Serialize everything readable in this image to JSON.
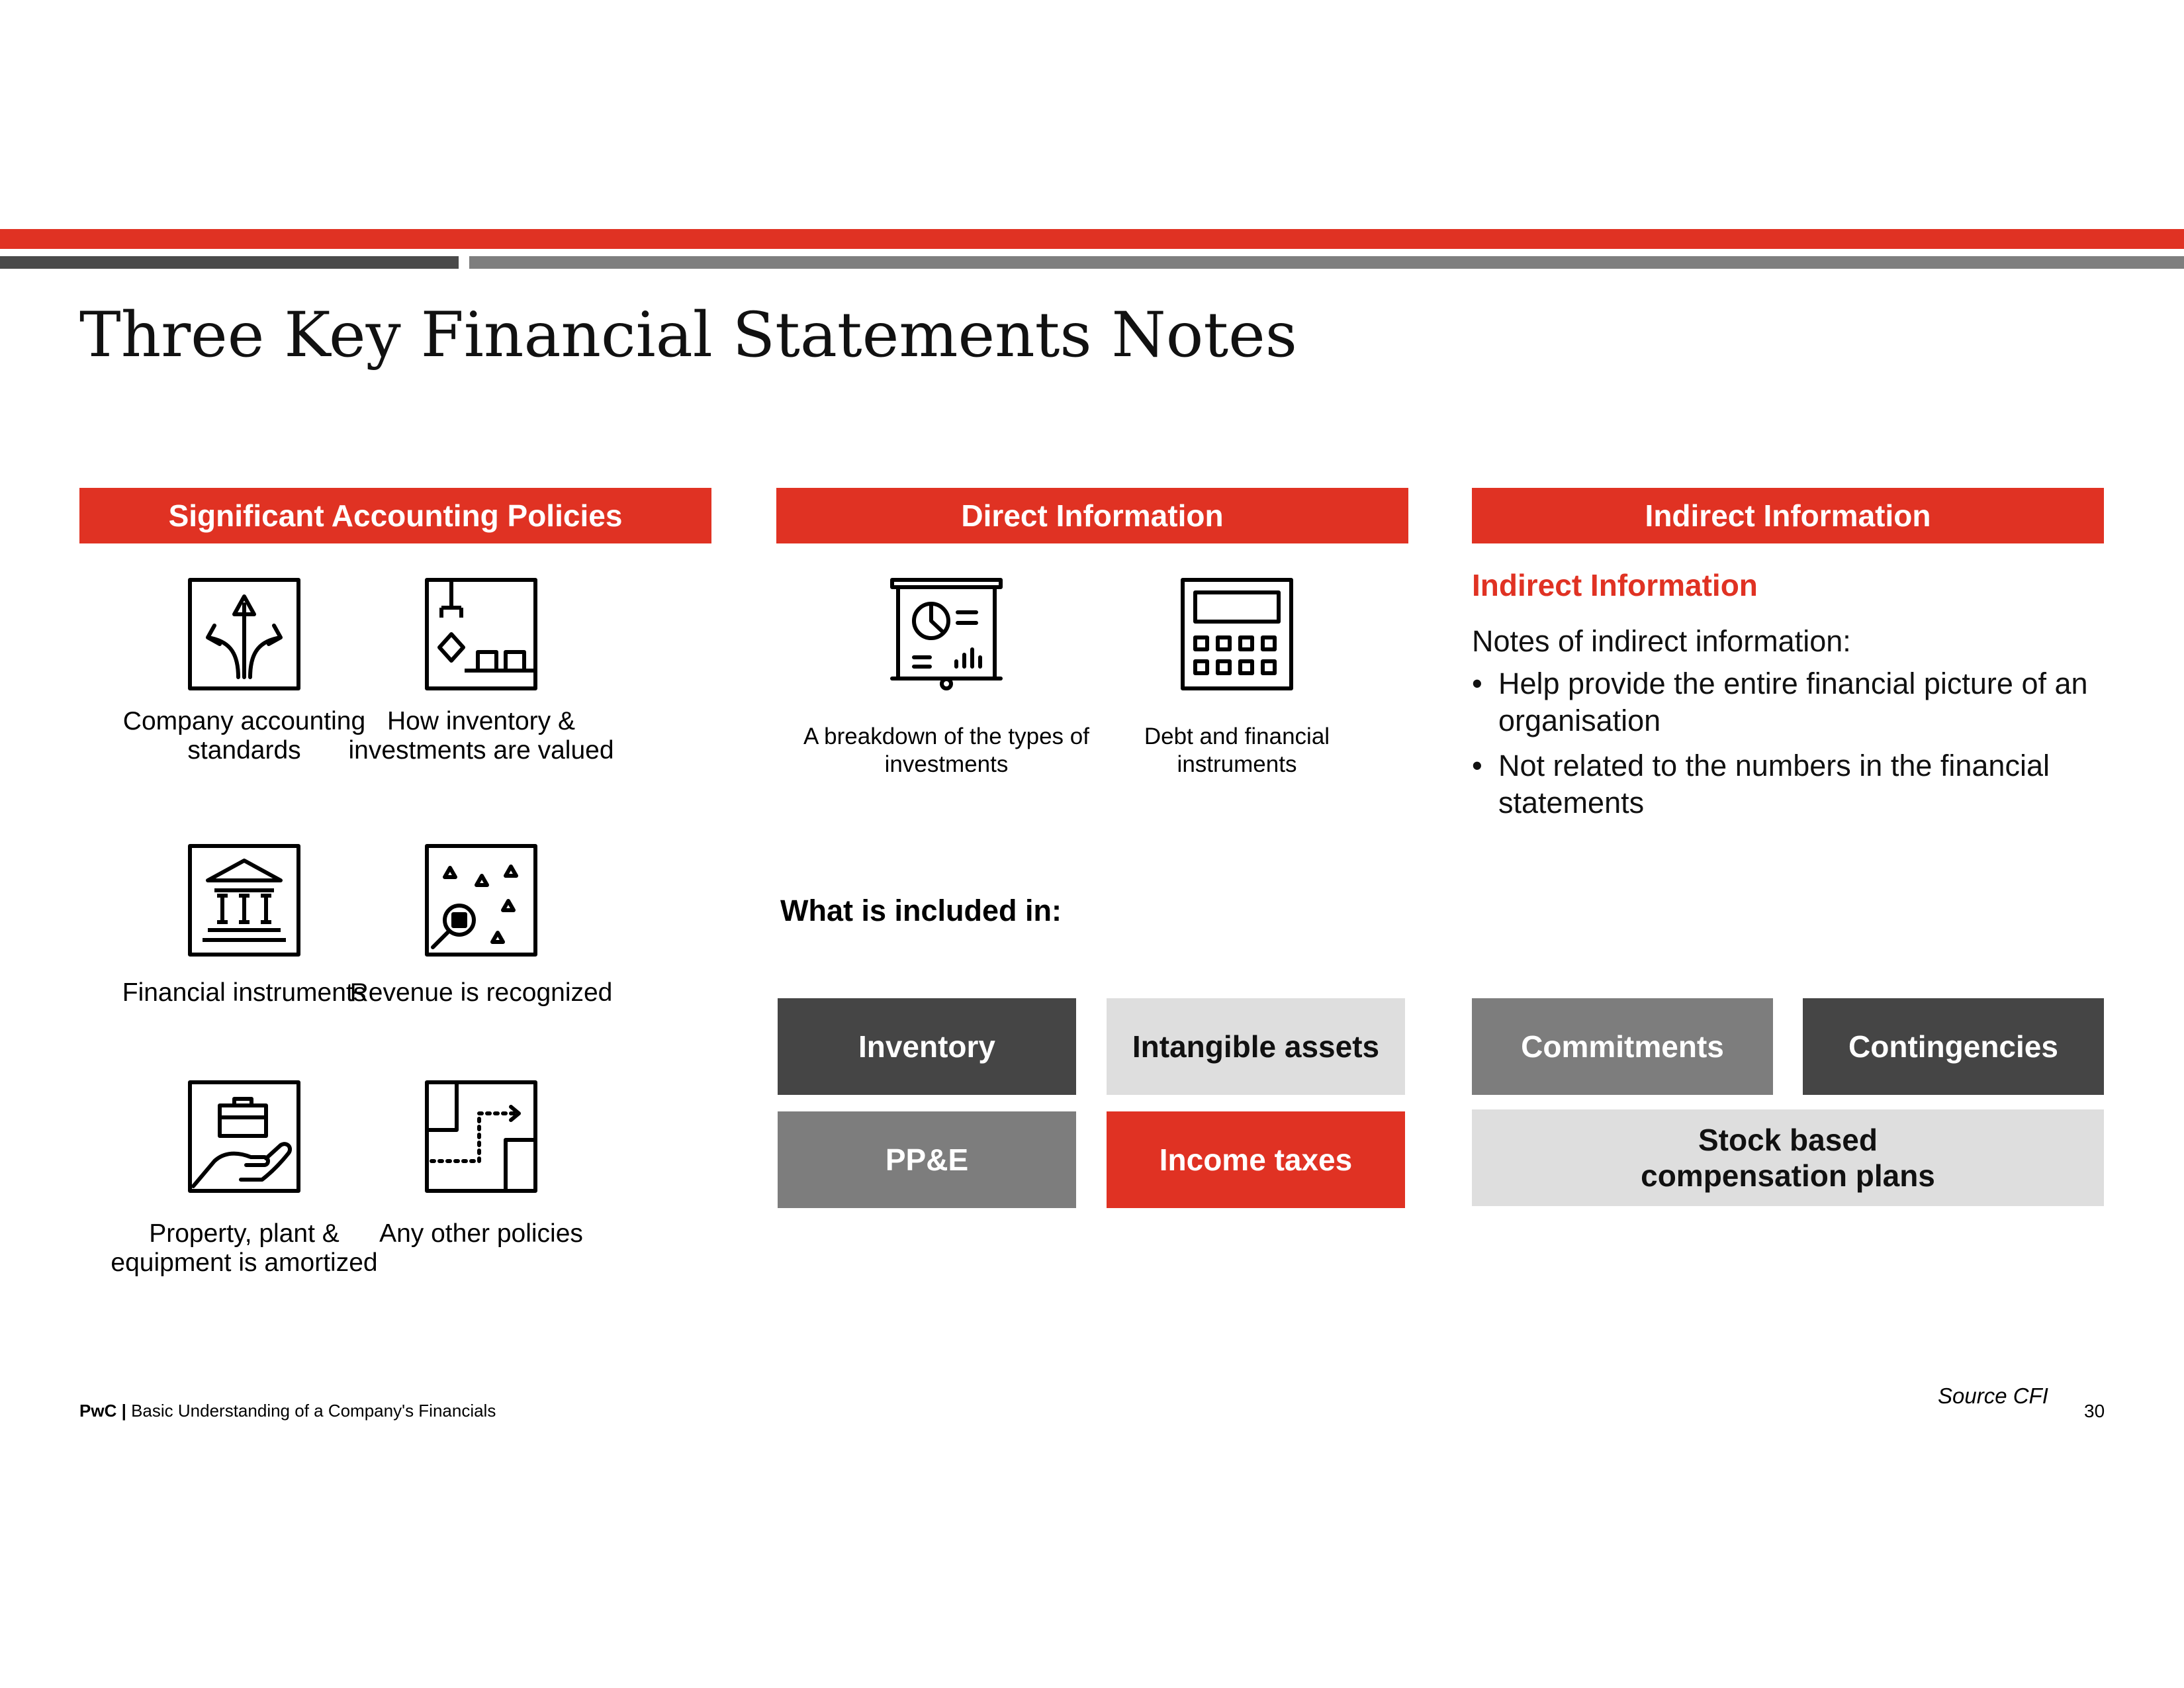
{
  "title": "Three Key Financial Statements Notes",
  "columns": {
    "policies": {
      "header": "Significant Accounting Policies",
      "items": [
        {
          "label": "Company accounting standards",
          "icon": "arrows-split-icon"
        },
        {
          "label": "How inventory & investments are valued",
          "icon": "floor-plan-icon"
        },
        {
          "label": "Financial instruments",
          "icon": "bank-building-icon"
        },
        {
          "label": "Revenue is recognized",
          "icon": "magnifier-shapes-icon"
        },
        {
          "label": "Property, plant & equipment is amortized",
          "icon": "hand-briefcase-icon"
        },
        {
          "label": "Any other policies",
          "icon": "path-map-icon"
        }
      ]
    },
    "direct": {
      "header": "Direct Information",
      "items": [
        {
          "label": "A breakdown of the types of investments",
          "icon": "presentation-board-icon"
        },
        {
          "label": "Debt and financial instruments",
          "icon": "calculator-icon"
        }
      ],
      "included_label": "What is included in:",
      "tiles": [
        "Inventory",
        "Intangible assets",
        "PP&E",
        "Income taxes"
      ]
    },
    "indirect": {
      "header": "Indirect Information",
      "subheading": "Indirect Information",
      "lead": "Notes of indirect information:",
      "bullets": [
        "Help provide the entire financial picture of an organisation",
        "Not related to the numbers in the financial statements"
      ],
      "tiles": [
        "Commitments",
        "Contingencies",
        "Stock based compensation plans"
      ]
    }
  },
  "footer": {
    "brand": "PwC",
    "separator": "|",
    "text": "Basic Understanding of a Company's Financials",
    "source": "Source CFI",
    "page": "30"
  },
  "colors": {
    "accent_red": "#e03223",
    "dark_grey": "#454545",
    "mid_grey": "#7d7d7d",
    "light_grey": "#dedede"
  }
}
